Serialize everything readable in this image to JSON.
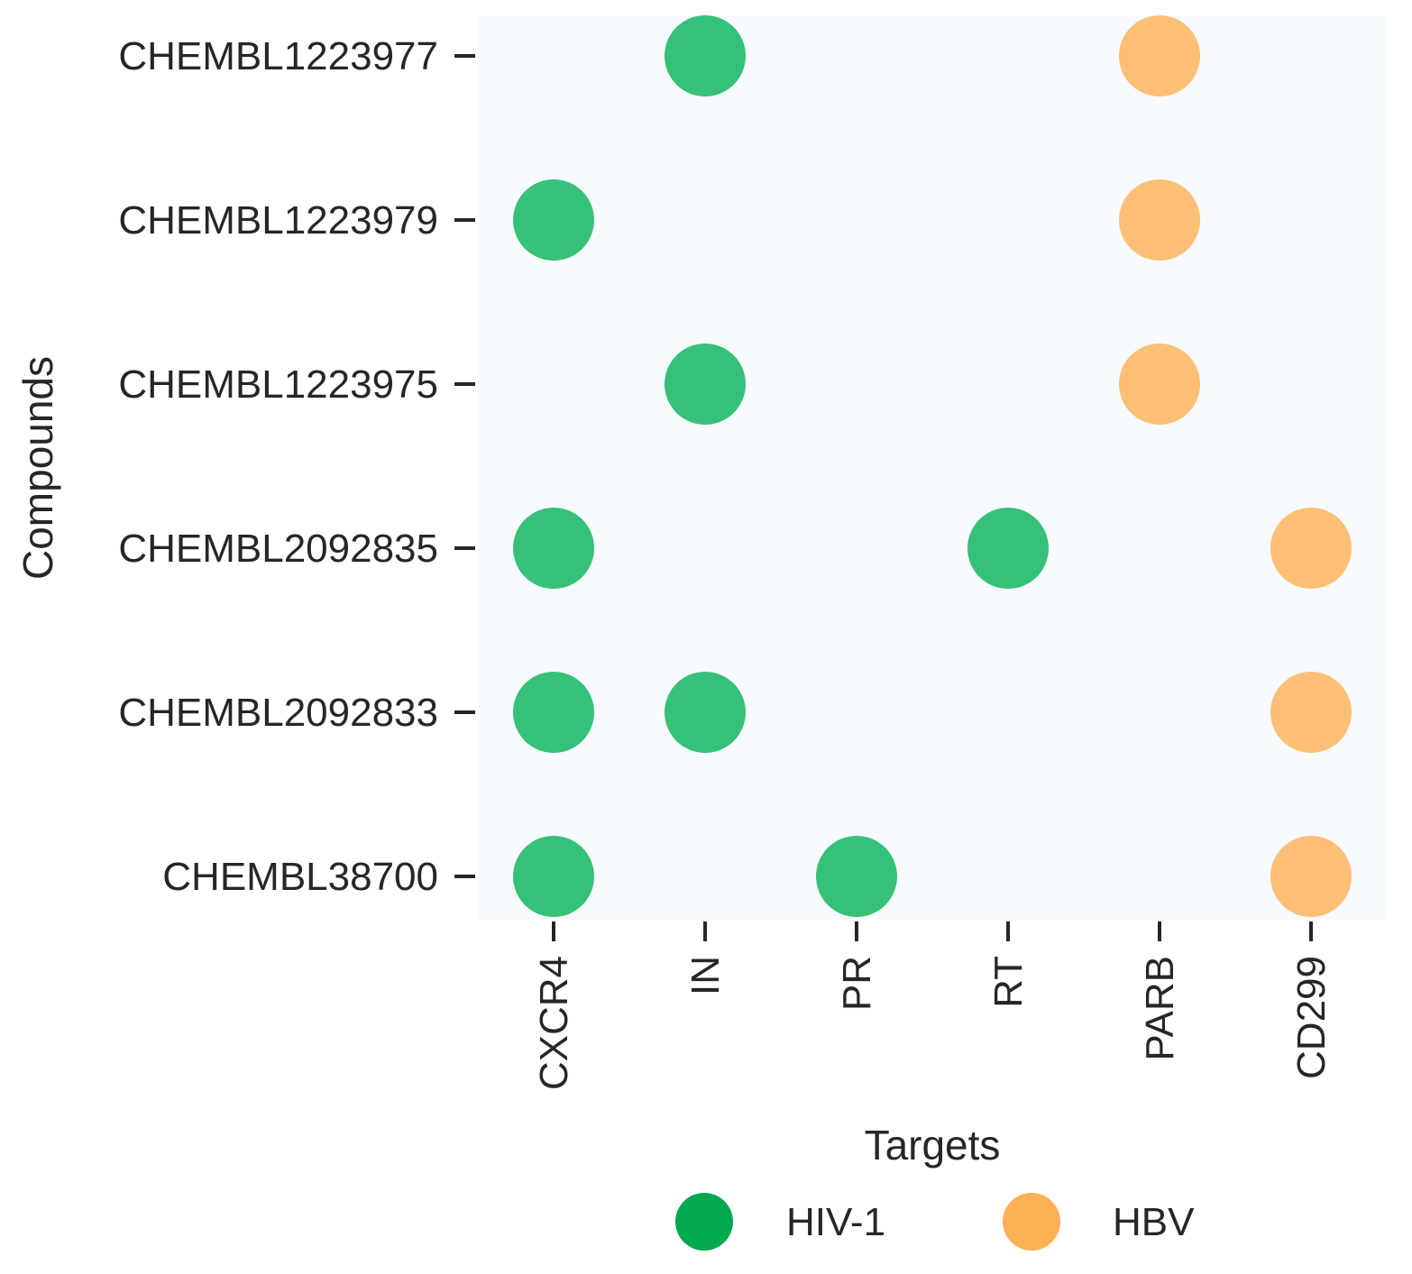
{
  "chart_data": {
    "type": "scatter",
    "title": "",
    "xlabel": "Targets",
    "ylabel": "Compounds",
    "x_categories": [
      "CXCR4",
      "IN",
      "PR",
      "RT",
      "PARB",
      "CD299"
    ],
    "y_categories": [
      "CHEMBL1223977",
      "CHEMBL1223979",
      "CHEMBL1223975",
      "CHEMBL2092835",
      "CHEMBL2092833",
      "CHEMBL38700"
    ],
    "grid": false,
    "legend_position": "bottom",
    "series": [
      {
        "name": "HIV-1",
        "color": "#35c178",
        "legend_color": "#00a84f",
        "points": [
          {
            "x": "IN",
            "y": "CHEMBL1223977"
          },
          {
            "x": "CXCR4",
            "y": "CHEMBL1223979"
          },
          {
            "x": "IN",
            "y": "CHEMBL1223975"
          },
          {
            "x": "CXCR4",
            "y": "CHEMBL2092835"
          },
          {
            "x": "RT",
            "y": "CHEMBL2092835"
          },
          {
            "x": "CXCR4",
            "y": "CHEMBL2092833"
          },
          {
            "x": "IN",
            "y": "CHEMBL2092833"
          },
          {
            "x": "CXCR4",
            "y": "CHEMBL38700"
          },
          {
            "x": "PR",
            "y": "CHEMBL38700"
          }
        ]
      },
      {
        "name": "HBV",
        "color": "#fdbf76",
        "legend_color": "#fdb054",
        "points": [
          {
            "x": "PARB",
            "y": "CHEMBL1223977"
          },
          {
            "x": "PARB",
            "y": "CHEMBL1223979"
          },
          {
            "x": "PARB",
            "y": "CHEMBL1223975"
          },
          {
            "x": "CD299",
            "y": "CHEMBL2092835"
          },
          {
            "x": "CD299",
            "y": "CHEMBL2092833"
          },
          {
            "x": "CD299",
            "y": "CHEMBL38700"
          }
        ]
      }
    ],
    "colors": {
      "plot_background": "#f7fafe",
      "text": "#262626",
      "tick": "#262626"
    }
  }
}
